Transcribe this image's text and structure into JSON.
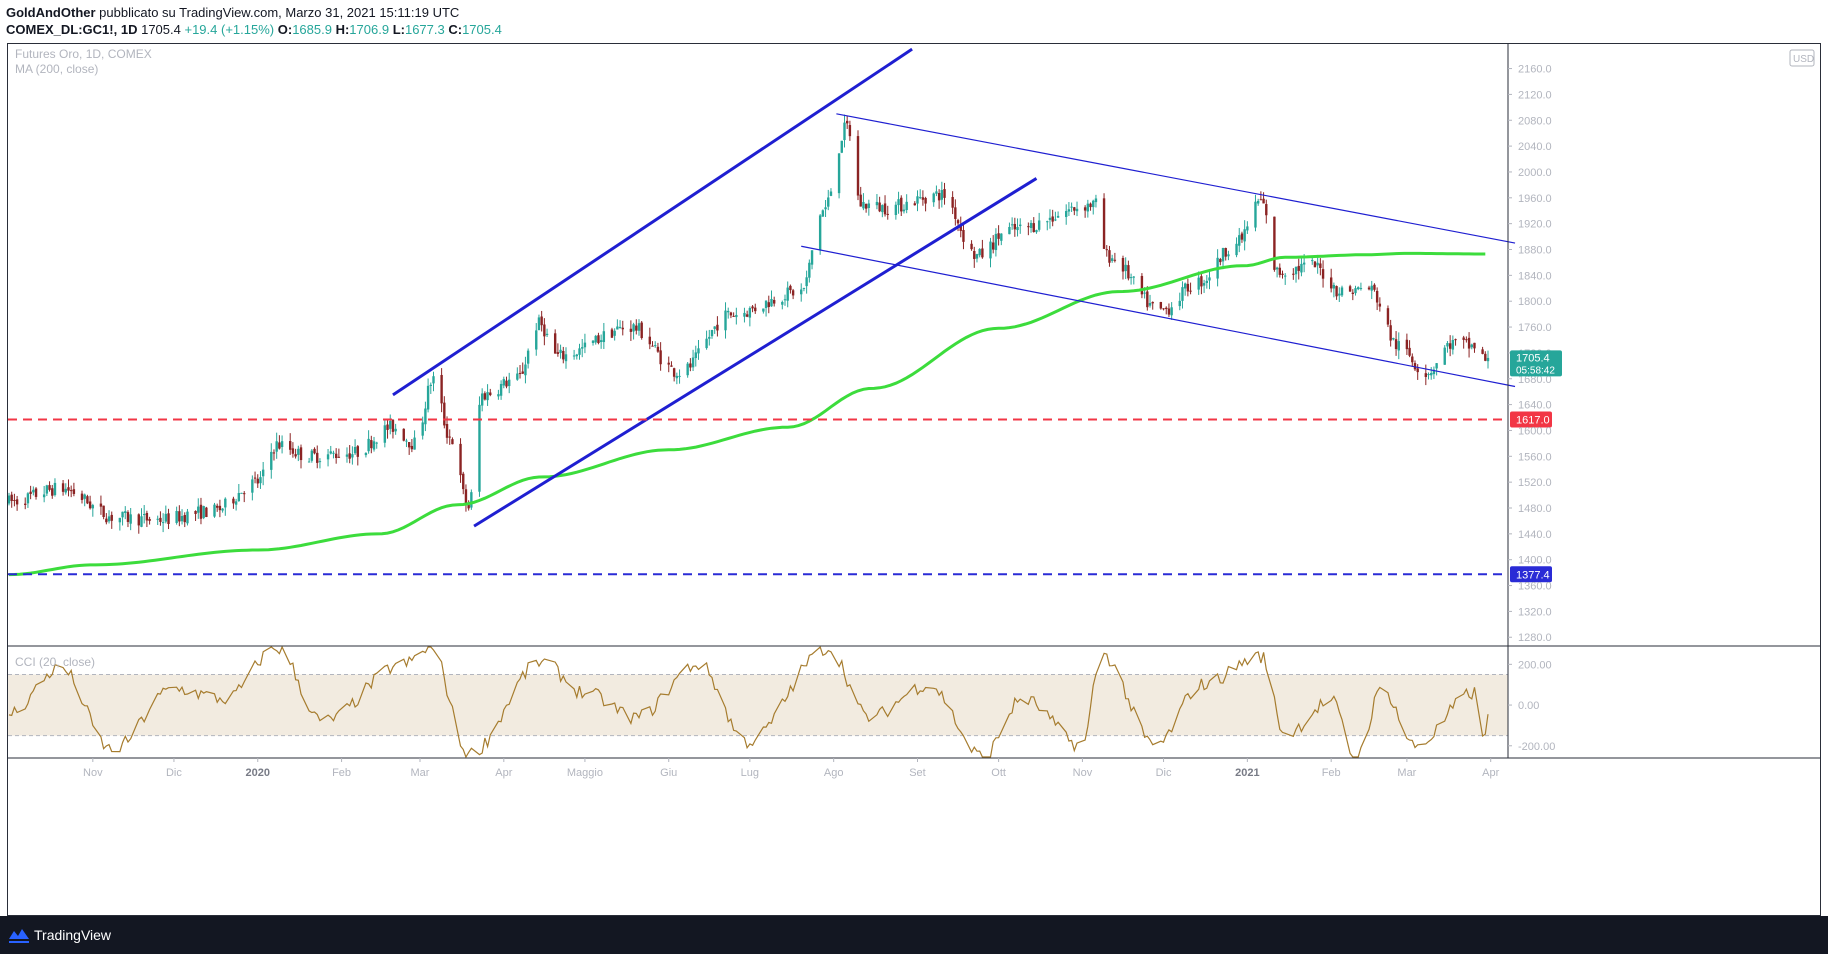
{
  "header": {
    "author": "GoldAndOther",
    "published": "pubblicato su TradingView.com, Marzo 31, 2021 15:11:19 UTC",
    "symbol": "COMEX_DL:GC1!, 1D",
    "last": "1705.4",
    "change": "+19.4 (+1.15%)",
    "o_label": "O:",
    "o_value": "1685.9",
    "h_label": "H:",
    "h_value": "1706.9",
    "l_label": "L:",
    "l_value": "1677.3",
    "c_label": "C:",
    "c_value": "1705.4"
  },
  "legend": {
    "title": "Futures Oro, 1D, COMEX",
    "ma": "MA (200, close)",
    "cci": "CCI (20, close)"
  },
  "footer": {
    "brand": "TradingView"
  },
  "chart_data": {
    "type": "candlestick",
    "currency_label": "USD",
    "price_axis": {
      "range": [
        1268,
        2198
      ],
      "ticks": [
        1280.0,
        1320.0,
        1360.0,
        1400.0,
        1440.0,
        1480.0,
        1520.0,
        1560.0,
        1600.0,
        1640.0,
        1680.0,
        1720.0,
        1760.0,
        1800.0,
        1840.0,
        1880.0,
        1920.0,
        1960.0,
        2000.0,
        2040.0,
        2080.0,
        2120.0,
        2160.0
      ]
    },
    "cci_axis": {
      "range": [
        -260,
        290
      ],
      "ticks": [
        "200.00",
        "0.00",
        "-200.00"
      ],
      "band": [
        -150,
        150
      ]
    },
    "x_labels": [
      "Nov",
      "Dic",
      "2020",
      "Feb",
      "Mar",
      "Apr",
      "Maggio",
      "Giu",
      "Lug",
      "Ago",
      "Set",
      "Ott",
      "Nov",
      "Dic",
      "2021",
      "Feb",
      "Mar",
      "Apr"
    ],
    "x_bold": [
      "2020",
      "2021"
    ],
    "price_anchors": [
      [
        "2019-10-01",
        1490
      ],
      [
        "2019-10-20",
        1510
      ],
      [
        "2019-11-10",
        1465
      ],
      [
        "2019-11-25",
        1462
      ],
      [
        "2019-12-15",
        1475
      ],
      [
        "2020-01-01",
        1520
      ],
      [
        "2020-01-08",
        1578
      ],
      [
        "2020-01-20",
        1560
      ],
      [
        "2020-02-05",
        1565
      ],
      [
        "2020-02-20",
        1605
      ],
      [
        "2020-02-28",
        1580
      ],
      [
        "2020-03-06",
        1680
      ],
      [
        "2020-03-12",
        1590
      ],
      [
        "2020-03-19",
        1482
      ],
      [
        "2020-03-24",
        1655
      ],
      [
        "2020-04-06",
        1680
      ],
      [
        "2020-04-14",
        1765
      ],
      [
        "2020-04-21",
        1715
      ],
      [
        "2020-05-18",
        1760
      ],
      [
        "2020-06-05",
        1690
      ],
      [
        "2020-06-24",
        1780
      ],
      [
        "2020-07-20",
        1815
      ],
      [
        "2020-07-28",
        1940
      ],
      [
        "2020-08-06",
        2070
      ],
      [
        "2020-08-11",
        1950
      ],
      [
        "2020-08-20",
        1945
      ],
      [
        "2020-09-10",
        1965
      ],
      [
        "2020-09-23",
        1870
      ],
      [
        "2020-10-05",
        1910
      ],
      [
        "2020-11-06",
        1950
      ],
      [
        "2020-11-10",
        1870
      ],
      [
        "2020-11-30",
        1785
      ],
      [
        "2020-12-14",
        1830
      ],
      [
        "2020-12-28",
        1890
      ],
      [
        "2021-01-06",
        1955
      ],
      [
        "2021-01-12",
        1845
      ],
      [
        "2021-01-25",
        1855
      ],
      [
        "2021-02-05",
        1815
      ],
      [
        "2021-02-15",
        1820
      ],
      [
        "2021-02-26",
        1730
      ],
      [
        "2021-03-08",
        1690
      ],
      [
        "2021-03-18",
        1735
      ],
      [
        "2021-03-26",
        1730
      ],
      [
        "2021-03-31",
        1705
      ]
    ],
    "ma_anchors": [
      [
        "2019-10-01",
        1377
      ],
      [
        "2019-11-01",
        1392
      ],
      [
        "2020-01-01",
        1415
      ],
      [
        "2020-02-15",
        1440
      ],
      [
        "2020-03-15",
        1485
      ],
      [
        "2020-04-15",
        1528
      ],
      [
        "2020-06-01",
        1570
      ],
      [
        "2020-07-15",
        1605
      ],
      [
        "2020-08-15",
        1665
      ],
      [
        "2020-10-01",
        1758
      ],
      [
        "2020-11-15",
        1815
      ],
      [
        "2020-12-31",
        1855
      ],
      [
        "2021-01-15",
        1868
      ],
      [
        "2021-02-15",
        1872
      ],
      [
        "2021-03-01",
        1874
      ],
      [
        "2021-03-31",
        1873
      ]
    ],
    "cci_anchors": [
      [
        "2019-10-01",
        -40
      ],
      [
        "2019-10-20",
        180
      ],
      [
        "2019-11-08",
        -220
      ],
      [
        "2019-12-01",
        80
      ],
      [
        "2019-12-20",
        30
      ],
      [
        "2020-01-08",
        280
      ],
      [
        "2020-01-25",
        -80
      ],
      [
        "2020-02-24",
        200
      ],
      [
        "2020-03-05",
        280
      ],
      [
        "2020-03-19",
        -240
      ],
      [
        "2020-04-15",
        210
      ],
      [
        "2020-05-01",
        60
      ],
      [
        "2020-05-20",
        -60
      ],
      [
        "2020-06-12",
        200
      ],
      [
        "2020-06-30",
        -180
      ],
      [
        "2020-07-30",
        280
      ],
      [
        "2020-08-14",
        -60
      ],
      [
        "2020-09-05",
        100
      ],
      [
        "2020-09-25",
        -250
      ],
      [
        "2020-10-10",
        30
      ],
      [
        "2020-11-01",
        -200
      ],
      [
        "2020-11-08",
        250
      ],
      [
        "2020-11-28",
        -200
      ],
      [
        "2020-12-15",
        100
      ],
      [
        "2021-01-06",
        240
      ],
      [
        "2021-01-15",
        -140
      ],
      [
        "2021-02-01",
        20
      ],
      [
        "2021-02-10",
        -260
      ],
      [
        "2021-02-20",
        80
      ],
      [
        "2021-03-04",
        -200
      ],
      [
        "2021-03-26",
        60
      ],
      [
        "2021-03-30",
        -170
      ],
      [
        "2021-03-31",
        -60
      ]
    ],
    "trend_lines": [
      {
        "name": "ascending-channel-upper",
        "from": [
          "2020-02-20",
          1655
        ],
        "to": [
          "2020-08-30",
          2190
        ]
      },
      {
        "name": "ascending-channel-lower",
        "from": [
          "2020-03-21",
          1452
        ],
        "to": [
          "2020-10-15",
          1990
        ]
      },
      {
        "name": "descending-channel-upper",
        "from": [
          "2020-08-02",
          2090
        ],
        "to": [
          "2021-04-10",
          1890
        ]
      },
      {
        "name": "descending-channel-lower",
        "from": [
          "2020-07-20",
          1885
        ],
        "to": [
          "2021-04-10",
          1668
        ]
      }
    ],
    "horizontal_lines": [
      {
        "value": 1617.0,
        "label": "1617.0",
        "color": "#f23645",
        "style": "dashed"
      },
      {
        "value": 1377.4,
        "label": "1377.4",
        "color": "#2a2bd6",
        "style": "dashed"
      }
    ],
    "last_price": {
      "value": "1705.4",
      "countdown": "05:58:42"
    },
    "colors": {
      "up": "#26a69a",
      "down": "#8b2323",
      "ma": "#3cdc3c",
      "cci": "#a67c2e",
      "channel": "#1f1fd1"
    }
  }
}
